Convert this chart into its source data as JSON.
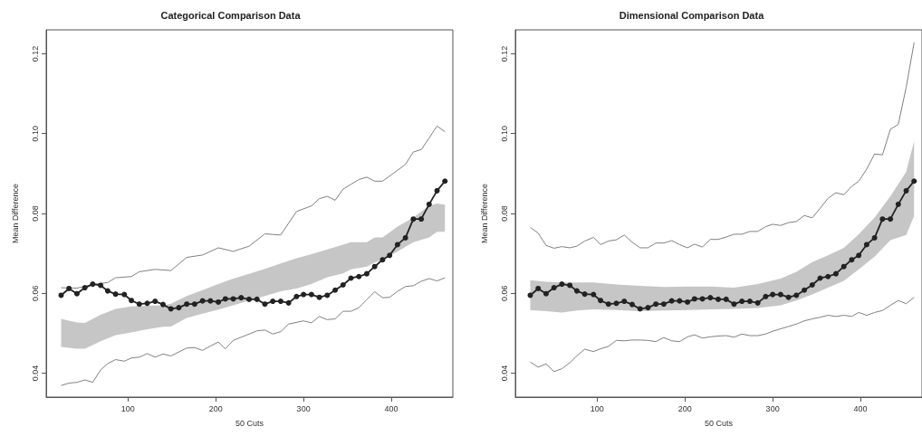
{
  "chart_data": [
    {
      "type": "line",
      "title": "Categorical Comparison Data",
      "xlabel": "50 Cuts",
      "ylabel": "Mean Difference",
      "xlim": [
        7,
        470
      ],
      "ylim": [
        0.034,
        0.126
      ],
      "xticks": [
        100,
        200,
        300,
        400
      ],
      "yticks": [
        0.04,
        0.06,
        0.08,
        {
          "value": 0.1,
          "label": "0.10"
        },
        0.12
      ],
      "grid": false,
      "marker": "circle",
      "series": [
        {
          "color": "#808080",
          "marker": "none",
          "x": [
            24,
            42,
            60,
            77,
            86,
            104,
            113,
            131,
            149,
            167,
            185,
            203,
            220,
            238,
            256,
            274,
            292,
            309,
            318,
            327,
            336,
            345,
            363,
            372,
            381,
            390,
            407,
            416,
            425,
            434,
            443,
            452,
            461
          ],
          "values": [
            0.0614,
            0.0613,
            0.0622,
            0.0627,
            0.0639,
            0.0642,
            0.0654,
            0.066,
            0.0657,
            0.069,
            0.0696,
            0.0714,
            0.0705,
            0.0718,
            0.0749,
            0.0746,
            0.0805,
            0.0819,
            0.0837,
            0.0843,
            0.0833,
            0.0861,
            0.0885,
            0.0891,
            0.0881,
            0.0881,
            0.0908,
            0.0923,
            0.0954,
            0.096,
            0.0989,
            0.1019,
            0.1005
          ]
        },
        {
          "color": "#808080",
          "marker": "none",
          "x": [
            24,
            33,
            42,
            51,
            60,
            69,
            77,
            86,
            96,
            104,
            113,
            122,
            131,
            140,
            149,
            167,
            176,
            185,
            194,
            203,
            211,
            220,
            238,
            247,
            256,
            265,
            274,
            283,
            300,
            309,
            318,
            327,
            336,
            345,
            354,
            363,
            372,
            381,
            390,
            398,
            407,
            416,
            425,
            434,
            443,
            452,
            461
          ],
          "values": [
            0.0369,
            0.0375,
            0.0377,
            0.0383,
            0.0377,
            0.0408,
            0.0424,
            0.0434,
            0.043,
            0.0438,
            0.044,
            0.0449,
            0.044,
            0.0448,
            0.0443,
            0.0463,
            0.0464,
            0.0457,
            0.0468,
            0.0478,
            0.0461,
            0.0482,
            0.0498,
            0.0506,
            0.0508,
            0.0498,
            0.0504,
            0.0523,
            0.0531,
            0.0526,
            0.0542,
            0.0534,
            0.0536,
            0.0555,
            0.0555,
            0.0564,
            0.0584,
            0.0604,
            0.0589,
            0.059,
            0.0605,
            0.0617,
            0.0619,
            0.063,
            0.0637,
            0.0631,
            0.0639
          ]
        },
        {
          "color": "#222222",
          "x": [
            24,
            33,
            42,
            51,
            60,
            69,
            77,
            86,
            96,
            104,
            113,
            122,
            131,
            140,
            149,
            158,
            167,
            176,
            185,
            194,
            203,
            211,
            220,
            229,
            238,
            247,
            256,
            265,
            274,
            283,
            292,
            300,
            309,
            318,
            327,
            336,
            345,
            354,
            363,
            372,
            381,
            390,
            398,
            407,
            416,
            425,
            434,
            443,
            452,
            461
          ],
          "values": [
            0.0595,
            0.0612,
            0.0599,
            0.0614,
            0.0623,
            0.062,
            0.0606,
            0.0598,
            0.0597,
            0.0582,
            0.0573,
            0.0575,
            0.058,
            0.0572,
            0.0561,
            0.0564,
            0.0573,
            0.0573,
            0.0581,
            0.0581,
            0.0578,
            0.0586,
            0.0586,
            0.0589,
            0.0585,
            0.0585,
            0.0573,
            0.058,
            0.058,
            0.0576,
            0.0592,
            0.0597,
            0.0597,
            0.059,
            0.0595,
            0.0608,
            0.0621,
            0.0638,
            0.0642,
            0.0649,
            0.0667,
            0.0684,
            0.0695,
            0.0722,
            0.0739,
            0.0786,
            0.0786,
            0.0823,
            0.0857,
            0.0881
          ],
          "lower": [
            0.0466,
            null,
            0.0461,
            0.0461,
            null,
            0.048,
            null,
            0.0495,
            null,
            0.0502,
            null,
            0.051,
            null,
            0.0516,
            0.0517,
            null,
            0.0538,
            null,
            0.0549,
            null,
            0.0559,
            null,
            0.057,
            null,
            0.0582,
            null,
            0.0593,
            null,
            0.0605,
            null,
            0.0612,
            null,
            0.0623,
            null,
            0.064,
            null,
            0.065,
            0.066,
            null,
            0.0667,
            0.0677,
            0.0684,
            null,
            0.0705,
            null,
            0.0728,
            null,
            0.074,
            0.0754,
            0.0754
          ],
          "upper": [
            0.0536,
            null,
            0.0527,
            0.0526,
            null,
            0.0546,
            null,
            0.0561,
            null,
            0.0567,
            null,
            0.0569,
            null,
            0.057,
            0.0574,
            null,
            0.0593,
            null,
            0.0608,
            null,
            0.0623,
            null,
            0.0637,
            null,
            0.0649,
            null,
            0.0661,
            null,
            0.0675,
            null,
            0.0688,
            null,
            0.0698,
            null,
            0.071,
            null,
            0.0722,
            0.0728,
            null,
            0.0728,
            0.074,
            0.074,
            null,
            0.0767,
            null,
            0.079,
            null,
            0.0819,
            0.0825,
            0.0822
          ]
        }
      ]
    },
    {
      "type": "line",
      "title": "Dimensional Comparison Data",
      "xlabel": "50 Cuts",
      "ylabel": "Mean Difference",
      "xlim": [
        7,
        470
      ],
      "ylim": [
        0.034,
        0.126
      ],
      "xticks": [
        100,
        200,
        300,
        400
      ],
      "yticks": [
        0.04,
        0.06,
        0.08,
        {
          "value": 0.1,
          "label": "0.10"
        },
        0.12
      ],
      "grid": false,
      "marker": "circle",
      "series": [
        {
          "color": "#808080",
          "marker": "none",
          "x": [
            24,
            33,
            42,
            51,
            60,
            69,
            77,
            86,
            96,
            104,
            113,
            122,
            131,
            140,
            149,
            158,
            167,
            176,
            185,
            194,
            203,
            211,
            220,
            229,
            238,
            247,
            256,
            265,
            274,
            283,
            292,
            300,
            309,
            318,
            327,
            336,
            345,
            354,
            363,
            372,
            381,
            390,
            398,
            407,
            416,
            425,
            434,
            443,
            452,
            461
          ],
          "values": [
            0.0765,
            0.0751,
            0.072,
            0.0713,
            0.0717,
            0.0714,
            0.0718,
            0.0731,
            0.074,
            0.0722,
            0.0731,
            0.0734,
            0.0746,
            0.0728,
            0.0714,
            0.0714,
            0.0726,
            0.0726,
            0.0732,
            0.0722,
            0.0714,
            0.0723,
            0.0716,
            0.0735,
            0.0735,
            0.0741,
            0.0748,
            0.0748,
            0.0755,
            0.0755,
            0.0767,
            0.0773,
            0.077,
            0.0777,
            0.078,
            0.0795,
            0.0789,
            0.0813,
            0.0838,
            0.0852,
            0.0847,
            0.0868,
            0.0881,
            0.0911,
            0.0949,
            0.0947,
            0.1011,
            0.1023,
            0.1116,
            0.1228
          ]
        },
        {
          "color": "#808080",
          "marker": "none",
          "x": [
            24,
            33,
            42,
            51,
            60,
            69,
            77,
            86,
            96,
            104,
            113,
            122,
            131,
            140,
            149,
            158,
            167,
            176,
            185,
            194,
            203,
            211,
            220,
            229,
            238,
            247,
            256,
            265,
            274,
            283,
            292,
            300,
            309,
            318,
            327,
            336,
            345,
            354,
            363,
            372,
            381,
            390,
            398,
            407,
            416,
            425,
            434,
            443,
            452,
            461
          ],
          "values": [
            0.0428,
            0.0415,
            0.0423,
            0.0404,
            0.0411,
            0.0426,
            0.0443,
            0.046,
            0.0454,
            0.0461,
            0.0467,
            0.0482,
            0.0481,
            0.0483,
            0.0483,
            0.0482,
            0.0479,
            0.0489,
            0.0481,
            0.0479,
            0.0491,
            0.0496,
            0.0488,
            0.0491,
            0.0493,
            0.0494,
            0.049,
            0.0498,
            0.0494,
            0.0494,
            0.0498,
            0.0505,
            0.0511,
            0.0517,
            0.0523,
            0.0531,
            0.0536,
            0.054,
            0.0545,
            0.0542,
            0.0545,
            0.0542,
            0.0552,
            0.0545,
            0.0552,
            0.0557,
            0.057,
            0.0582,
            0.0574,
            0.059
          ]
        },
        {
          "color": "#222222",
          "x": [
            24,
            33,
            42,
            51,
            60,
            69,
            77,
            86,
            96,
            104,
            113,
            122,
            131,
            140,
            149,
            158,
            167,
            176,
            185,
            194,
            203,
            211,
            220,
            229,
            238,
            247,
            256,
            265,
            274,
            283,
            292,
            300,
            309,
            318,
            327,
            336,
            345,
            354,
            363,
            372,
            381,
            390,
            398,
            407,
            416,
            425,
            434,
            443,
            452,
            461
          ],
          "values": [
            0.0595,
            0.0612,
            0.0599,
            0.0614,
            0.0623,
            0.062,
            0.0606,
            0.0598,
            0.0597,
            0.0582,
            0.0573,
            0.0575,
            0.058,
            0.0572,
            0.0561,
            0.0564,
            0.0573,
            0.0573,
            0.0581,
            0.0581,
            0.0578,
            0.0586,
            0.0586,
            0.0589,
            0.0585,
            0.0585,
            0.0573,
            0.058,
            0.058,
            0.0576,
            0.0592,
            0.0597,
            0.0597,
            0.059,
            0.0595,
            0.0608,
            0.0621,
            0.0638,
            0.0642,
            0.0649,
            0.0667,
            0.0684,
            0.0695,
            0.0722,
            0.0739,
            0.0786,
            0.0786,
            0.0823,
            0.0857,
            0.0881
          ],
          "lower": [
            0.0558,
            null,
            0.0555,
            null,
            0.0552,
            null,
            0.0557,
            null,
            0.056,
            null,
            null,
            0.0558,
            null,
            null,
            0.0555,
            null,
            null,
            0.0557,
            null,
            null,
            0.0558,
            null,
            null,
            0.056,
            null,
            null,
            0.0561,
            null,
            null,
            0.0563,
            null,
            null,
            0.057,
            null,
            0.0582,
            null,
            0.0597,
            null,
            0.0614,
            null,
            0.0631,
            null,
            0.066,
            null,
            0.0692,
            null,
            0.0733,
            null,
            0.0746,
            0.0794
          ],
          "upper": [
            0.0633,
            null,
            0.0629,
            null,
            0.0627,
            null,
            0.0627,
            null,
            0.0627,
            null,
            null,
            0.0622,
            null,
            null,
            0.0619,
            null,
            null,
            0.0616,
            null,
            null,
            0.0617,
            null,
            null,
            0.0617,
            null,
            null,
            0.0614,
            null,
            null,
            0.0623,
            null,
            null,
            0.0637,
            null,
            0.0654,
            null,
            0.0678,
            null,
            0.0695,
            null,
            0.0714,
            null,
            0.0748,
            null,
            0.079,
            null,
            0.0843,
            null,
            0.0904,
            0.0981
          ]
        }
      ]
    }
  ]
}
